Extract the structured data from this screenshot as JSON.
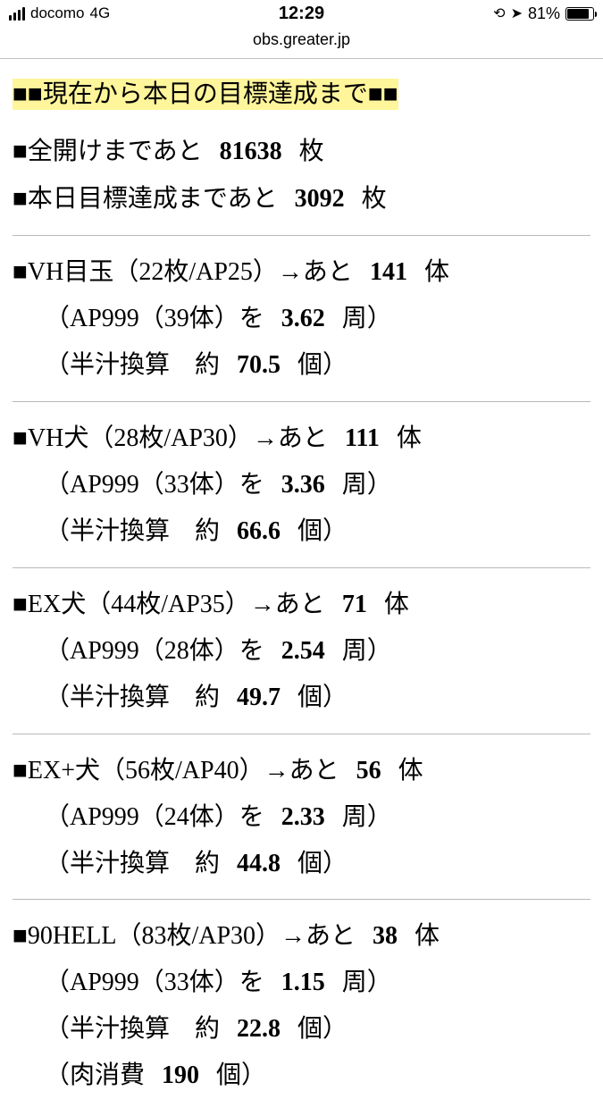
{
  "statusbar": {
    "carrier": "docomo",
    "network": "4G",
    "time": "12:29",
    "battery_pct": "81%"
  },
  "url": "obs.greater.jp",
  "heading": "■■現在から本日の目標達成まで■■",
  "summary": {
    "row1_pre": "■全開けまであと",
    "row1_val": "81638",
    "row1_suf": "枚",
    "row2_pre": "■本日目標達成まであと",
    "row2_val": "3092",
    "row2_suf": "枚"
  },
  "sections": {
    "s0": {
      "main_pre": "■VH目玉（22枚/AP25）→あと",
      "main_val": "141",
      "main_suf": "体",
      "ap_pre": "（AP999（39体）を",
      "ap_val": "3.62",
      "ap_suf": "周）",
      "half_pre": "（半汁換算　約",
      "half_val": "70.5",
      "half_suf": "個）"
    },
    "s1": {
      "main_pre": "■VH犬（28枚/AP30）→あと",
      "main_val": "111",
      "main_suf": "体",
      "ap_pre": "（AP999（33体）を",
      "ap_val": "3.36",
      "ap_suf": "周）",
      "half_pre": "（半汁換算　約",
      "half_val": "66.6",
      "half_suf": "個）"
    },
    "s2": {
      "main_pre": "■EX犬（44枚/AP35）→あと",
      "main_val": "71",
      "main_suf": "体",
      "ap_pre": "（AP999（28体）を",
      "ap_val": "2.54",
      "ap_suf": "周）",
      "half_pre": "（半汁換算　約",
      "half_val": "49.7",
      "half_suf": "個）"
    },
    "s3": {
      "main_pre": "■EX+犬（56枚/AP40）→あと",
      "main_val": "56",
      "main_suf": "体",
      "ap_pre": "（AP999（24体）を",
      "ap_val": "2.33",
      "ap_suf": "周）",
      "half_pre": "（半汁換算　約",
      "half_val": "44.8",
      "half_suf": "個）"
    },
    "s4": {
      "main_pre": "■90HELL（83枚/AP30）→あと",
      "main_val": "38",
      "main_suf": "体",
      "ap_pre": "（AP999（33体）を",
      "ap_val": "1.15",
      "ap_suf": "周）",
      "half_pre": "（半汁換算　約",
      "half_val": "22.8",
      "half_suf": "個）",
      "meat_pre": "（肉消費",
      "meat_val": "190",
      "meat_suf": "個）"
    }
  }
}
